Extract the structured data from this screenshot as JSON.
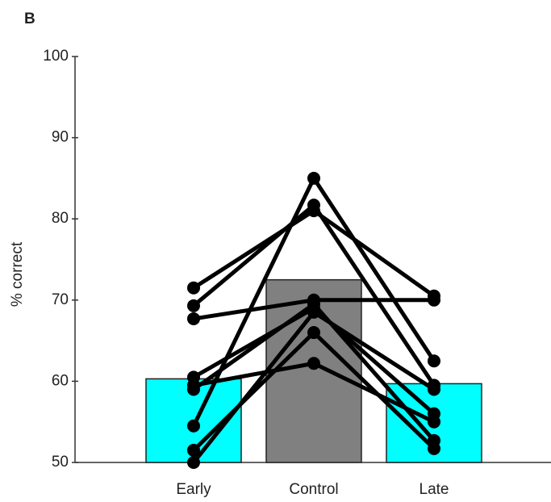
{
  "chart_data": {
    "type": "bar",
    "panel_label": "B",
    "ylabel": "% correct",
    "categories": [
      "Early",
      "Control",
      "Late"
    ],
    "values": [
      60.3,
      72.5,
      59.7
    ],
    "colors": [
      "#00ffff",
      "#808080",
      "#00ffff"
    ],
    "ylim": [
      50,
      100
    ],
    "yticks": [
      50,
      60,
      70,
      80,
      90,
      100
    ],
    "subjects": [
      {
        "values": [
          71.5,
          81.0,
          70.5
        ]
      },
      {
        "values": [
          69.3,
          81.7,
          59.5
        ]
      },
      {
        "values": [
          67.7,
          70.0,
          70.0
        ]
      },
      {
        "values": [
          60.5,
          69.0,
          56.0
        ]
      },
      {
        "values": [
          59.5,
          62.2,
          55.0
        ]
      },
      {
        "values": [
          59.0,
          69.5,
          52.7
        ]
      },
      {
        "values": [
          54.5,
          85.0,
          62.5
        ]
      },
      {
        "values": [
          51.5,
          66.0,
          51.7
        ]
      },
      {
        "values": [
          50.0,
          68.5,
          59.0
        ]
      }
    ],
    "subject_color": "#000000"
  }
}
